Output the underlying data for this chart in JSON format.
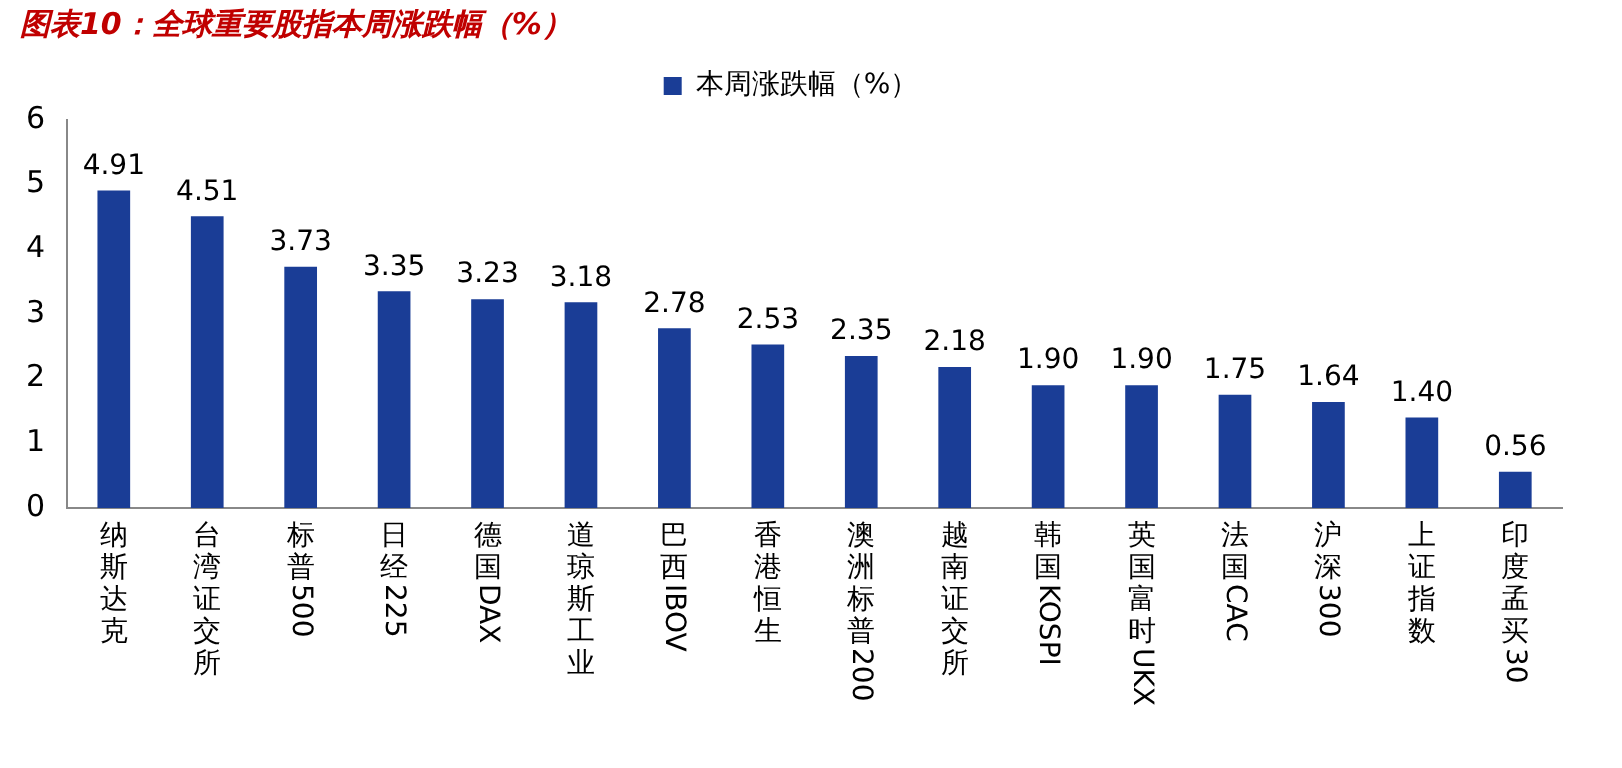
{
  "chart_data": {
    "type": "bar",
    "title": "图表10：全球重要股指本周涨跌幅（%）",
    "categories": [
      "纳斯达克",
      "台湾证交所",
      "标普500",
      "日经225",
      "德国DAX",
      "道琼斯工业",
      "巴西IBOV",
      "香港恒生",
      "澳洲标普200",
      "越南证交所",
      "韩国KOSPI",
      "英国富时UKX",
      "法国CAC",
      "沪深300",
      "上证指数",
      "印度孟买30"
    ],
    "series": [
      {
        "name": "本周涨跌幅（%）",
        "color": "#1a3d96",
        "values": [
          4.91,
          4.51,
          3.73,
          3.35,
          3.23,
          3.18,
          2.78,
          2.53,
          2.35,
          2.18,
          1.9,
          1.9,
          1.75,
          1.64,
          1.4,
          0.56
        ],
        "value_labels": [
          "4.91",
          "4.51",
          "3.73",
          "3.35",
          "3.23",
          "3.18",
          "2.78",
          "2.53",
          "2.35",
          "2.18",
          "1.90",
          "1.90",
          "1.75",
          "1.64",
          "1.40",
          "0.56"
        ]
      }
    ],
    "ylim": [
      0,
      6
    ],
    "yticks": [
      0,
      1,
      2,
      3,
      4,
      5,
      6
    ],
    "grid": false,
    "legend": "top"
  }
}
